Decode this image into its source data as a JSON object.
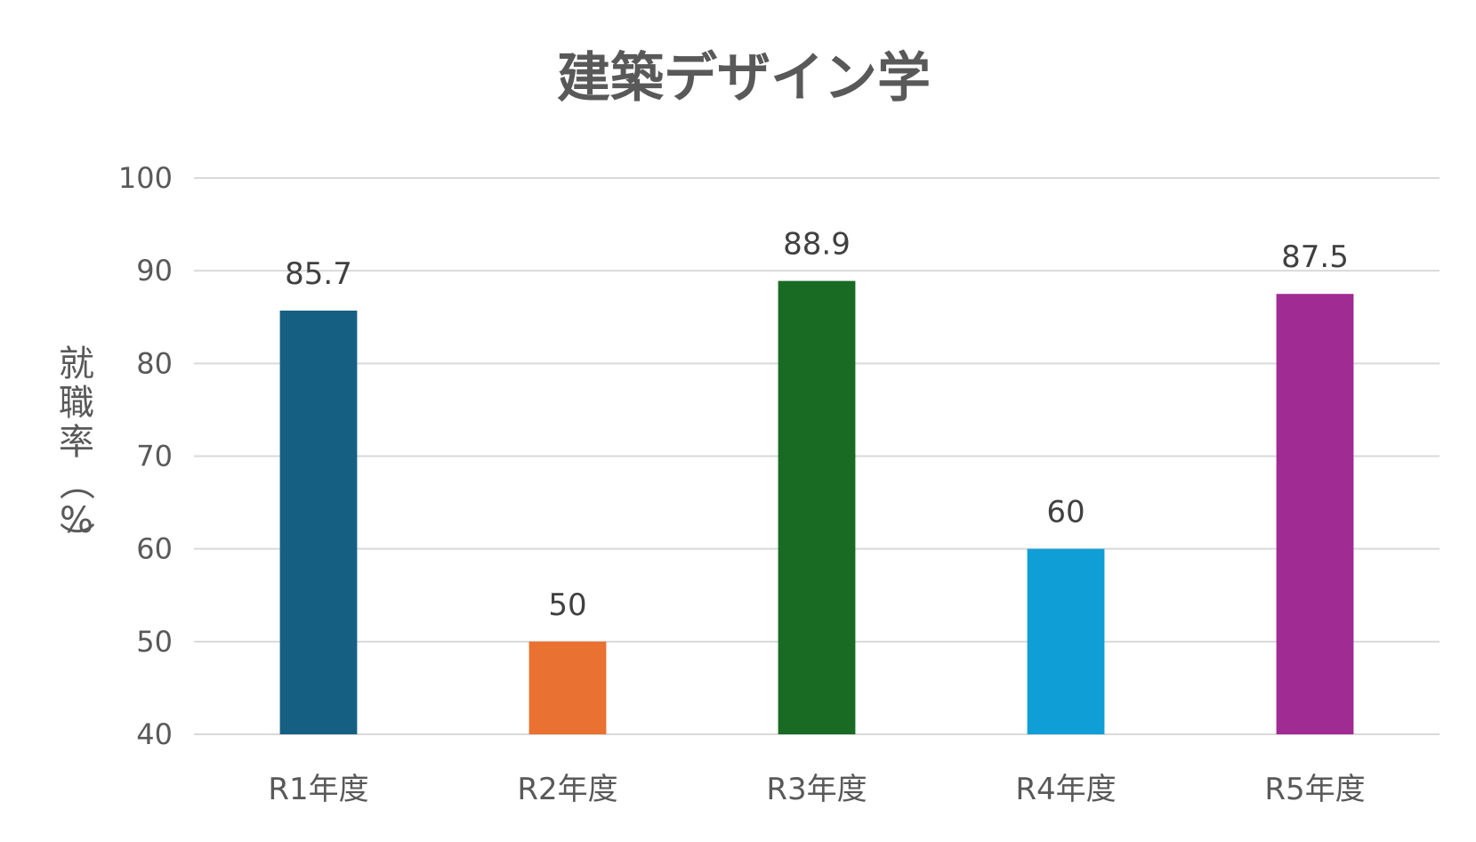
{
  "chart_data": {
    "type": "bar",
    "title": "建築デザイン学",
    "ylabel_chars": [
      "就",
      "職",
      "率",
      "（",
      "%",
      "）"
    ],
    "categories": [
      "R1年度",
      "R2年度",
      "R3年度",
      "R4年度",
      "R5年度"
    ],
    "values": [
      85.7,
      50,
      88.9,
      60,
      87.5
    ],
    "value_labels": [
      "85.7",
      "50",
      "88.9",
      "60",
      "87.5"
    ],
    "colors": [
      "#156082",
      "#E97132",
      "#196B24",
      "#0F9ED5",
      "#A02B93"
    ],
    "ylim": [
      40,
      100
    ],
    "yticks": [
      "40",
      "50",
      "60",
      "70",
      "80",
      "90",
      "100"
    ],
    "grid": true,
    "legend": "none"
  }
}
